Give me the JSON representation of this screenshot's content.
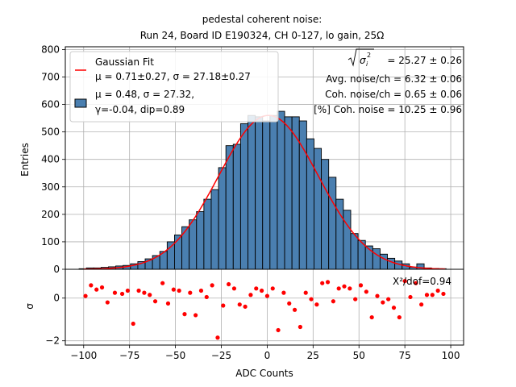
{
  "chart_data": {
    "type": "bar",
    "title_line1": "pedestal coherent noise:",
    "title_line2": "Run 24, Board ID E190324, CH 0-127, lo gain, 25Ω",
    "xlabel": "ADC Counts",
    "ylabel_top": "Entries",
    "ylabel_bottom": "σ",
    "xlim": [
      -110,
      107
    ],
    "ylim_top": [
      0,
      810
    ],
    "ylim_bottom": [
      -2.2,
      1.35
    ],
    "x_ticks": [
      -100,
      -75,
      -50,
      -25,
      0,
      25,
      50,
      75,
      100
    ],
    "x_tick_labels": [
      "−100",
      "−75",
      "−50",
      "−25",
      "0",
      "25",
      "50",
      "75",
      "100"
    ],
    "y_ticks_top": [
      0,
      100,
      200,
      300,
      400,
      500,
      600,
      700,
      800
    ],
    "y_tick_labels_top": [
      "0",
      "100",
      "200",
      "300",
      "400",
      "500",
      "600",
      "700",
      "800"
    ],
    "y_ticks_bottom": [
      -2,
      0
    ],
    "y_tick_labels_bottom": [
      "−2",
      "0"
    ],
    "grid": true,
    "legend": {
      "position": "top-left",
      "fit_label_1": "Gaussian Fit",
      "fit_label_2": "μ = 0.71±0.27, σ = 27.18±0.27",
      "hist_label_1": "μ = 0.48, σ = 27.32,",
      "hist_label_2": "γ=-0.04, dip=0.89"
    },
    "annotations": {
      "sigma_i": "= 25.27 ± 0.26",
      "avg_noise": "Avg. noise/ch = 6.32 ± 0.06",
      "coh_noise": "Coh. noise/ch = 0.65 ± 0.06",
      "coh_pct": "[%] Coh. noise = 10.25  ± 0.96",
      "chi2": "X²/dof=0.94"
    },
    "histogram": {
      "bin_start": -102.5,
      "bin_width": 4,
      "counts": [
        2,
        5,
        5,
        7,
        9,
        12,
        14,
        20,
        28,
        38,
        50,
        65,
        100,
        125,
        155,
        180,
        210,
        255,
        290,
        370,
        450,
        455,
        530,
        560,
        555,
        540,
        560,
        575,
        555,
        555,
        540,
        475,
        440,
        400,
        335,
        255,
        215,
        130,
        105,
        85,
        75,
        55,
        40,
        30,
        20,
        8,
        20,
        5,
        3,
        2
      ]
    },
    "gaussian_fit": {
      "mu": 0.71,
      "sigma": 27.18,
      "amplitude": 560,
      "x_range": [
        -100,
        97
      ]
    },
    "residuals": {
      "x": [
        -99,
        -96,
        -93,
        -90,
        -87,
        -83,
        -79,
        -76,
        -73,
        -70,
        -67,
        -64,
        -61,
        -57,
        -54,
        -51,
        -48,
        -45,
        -42,
        -39,
        -36,
        -33,
        -30,
        -27,
        -24,
        -21,
        -18,
        -15,
        -12,
        -9,
        -6,
        -3,
        0,
        3,
        6,
        9,
        12,
        15,
        18,
        21,
        24,
        27,
        30,
        33,
        36,
        39,
        42,
        45,
        48,
        51,
        54,
        57,
        60,
        63,
        66,
        69,
        72,
        75,
        78,
        81,
        84,
        87,
        90,
        93,
        96
      ],
      "y": [
        0.1,
        0.6,
        0.4,
        0.5,
        -0.2,
        0.25,
        0.2,
        0.35,
        -1.2,
        0.35,
        0.25,
        0.15,
        -0.15,
        0.7,
        -0.25,
        0.4,
        0.35,
        -0.75,
        0.25,
        -0.8,
        0.35,
        0.05,
        0.6,
        -1.85,
        -0.35,
        0.65,
        0.45,
        -0.3,
        -0.4,
        0.15,
        0.45,
        0.35,
        0.1,
        0.45,
        -1.5,
        0.25,
        -0.25,
        -0.55,
        -1.35,
        0.25,
        -0.05,
        -0.3,
        0.7,
        0.75,
        -0.15,
        0.45,
        0.55,
        0.45,
        -0.05,
        0.6,
        0.3,
        -0.9,
        0.1,
        -0.2,
        -0.05,
        -0.45,
        -0.9,
        0.8,
        0.05,
        0.7,
        -0.3,
        0.15,
        0.15,
        0.35,
        0.2
      ]
    },
    "colors": {
      "bar_fill": "#4a7fb0",
      "bar_edge": "#000000",
      "fit_line": "#ff0000",
      "residual_marker": "#ff0000",
      "grid": "#b0b0b0"
    }
  }
}
